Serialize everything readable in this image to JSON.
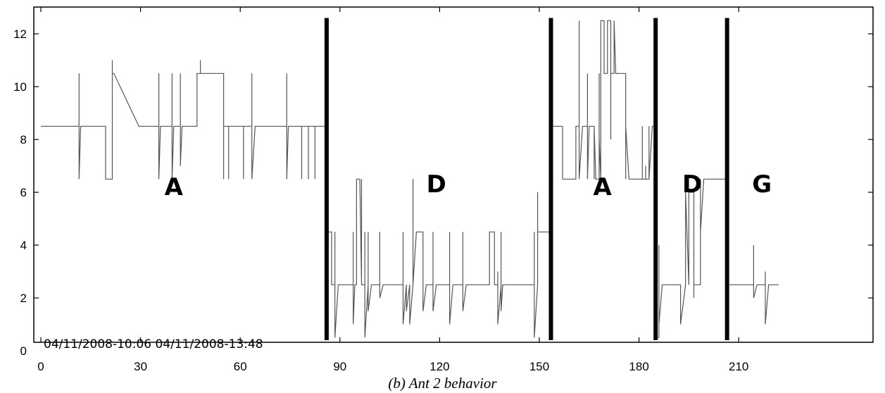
{
  "caption": "(b) Ant 2 behavior",
  "chart_data": {
    "type": "line",
    "title": "",
    "xlabel": "",
    "ylabel": "",
    "xlim": [
      0,
      240
    ],
    "ylim": [
      0,
      13
    ],
    "x_ticks": [
      0,
      30,
      60,
      90,
      120,
      150,
      180,
      210
    ],
    "y_ticks": [
      0,
      2,
      4,
      6,
      8,
      10,
      12
    ],
    "grid": false,
    "line_color": "#555555",
    "separator_color": "#000000",
    "separators": [
      86,
      153.5,
      185,
      206.5
    ],
    "segment_labels": [
      {
        "text": "A",
        "x": 40,
        "y": 5.9
      },
      {
        "text": "D",
        "x": 119,
        "y": 6.0
      },
      {
        "text": "A",
        "x": 169,
        "y": 5.9
      },
      {
        "text": "D",
        "x": 196,
        "y": 6.0
      },
      {
        "text": "G",
        "x": 217,
        "y": 6.0
      }
    ],
    "annotation": "04/11/2008-10:06 04/11/2008-13:48",
    "series": [
      {
        "x": [
          0,
          11.5,
          11.5,
          11.5,
          12,
          19.5,
          19.5,
          20,
          21.5,
          21.5,
          21.5,
          22,
          29.5,
          35.5,
          35.5,
          35.5,
          36,
          39.5,
          39.5,
          39.5,
          40,
          42,
          42,
          42,
          42.5,
          47,
          47,
          48,
          48,
          48,
          49.5,
          49.5,
          50,
          51,
          55,
          55,
          55,
          56.5,
          56.5,
          56.5,
          58,
          61,
          61,
          61,
          62,
          63.5,
          63.5,
          63.5,
          64.5,
          74,
          74,
          74,
          74.5,
          75,
          78.5,
          78.5,
          78.5,
          79,
          80.5,
          80.5,
          80.5,
          81,
          82.5,
          82.5,
          82.5,
          83,
          86
        ],
        "y": [
          8.5,
          8.5,
          10.5,
          6.5,
          8.5,
          8.5,
          6.5,
          6.5,
          6.5,
          11,
          10.5,
          10.5,
          8.5,
          8.5,
          10.5,
          6.5,
          8.5,
          8.5,
          10.5,
          6.5,
          8.5,
          8.5,
          10.5,
          7,
          8.5,
          8.5,
          10.5,
          10.5,
          11,
          10.5,
          10.5,
          10.5,
          10.5,
          10.5,
          10.5,
          6.5,
          8.5,
          8.5,
          6.5,
          8.5,
          8.5,
          8.5,
          6.5,
          8.5,
          8.5,
          8.5,
          10.5,
          6.5,
          8.5,
          8.5,
          10.5,
          6.5,
          8.5,
          8.5,
          8.5,
          6.5,
          8.5,
          8.5,
          8.5,
          6.5,
          8.5,
          8.5,
          8.5,
          6.5,
          8.5,
          8.5,
          8.5
        ]
      },
      {
        "x": [
          86,
          86.5,
          87.5,
          87.5,
          88.5,
          88.5,
          88.5,
          89.5,
          94,
          94,
          94,
          94.5,
          95,
          95,
          96,
          96.5,
          96.5,
          96.5,
          97.5,
          97.5,
          97.5,
          98.5,
          98.5,
          98.5,
          99.5,
          102,
          102,
          102,
          103,
          109,
          109,
          109,
          110,
          110,
          110,
          111,
          111,
          111,
          112,
          112,
          112,
          113,
          113,
          115,
          115,
          115,
          116,
          118,
          118,
          118,
          119,
          123,
          123,
          123,
          124,
          127,
          127,
          127,
          128,
          135,
          135,
          136.5,
          136.5,
          137.5,
          137.5,
          137.5,
          138.5,
          138.5,
          138.5,
          139,
          148.5,
          148.5,
          148.5,
          149.5,
          149.5,
          149.5,
          150,
          153.5
        ],
        "y": [
          0.5,
          4.5,
          4.5,
          2.5,
          2.5,
          4.5,
          0.5,
          2.5,
          2.5,
          4.5,
          1,
          2.5,
          2.5,
          6.5,
          6.5,
          2.5,
          6.5,
          2.5,
          2.5,
          4.5,
          0.5,
          2.5,
          4.5,
          1.5,
          2.5,
          2.5,
          4.5,
          2,
          2.5,
          2.5,
          4.5,
          1,
          2.5,
          2,
          1.5,
          2.5,
          2,
          1,
          2.5,
          6.5,
          2.5,
          4.5,
          4.5,
          4.5,
          2.5,
          1.5,
          2.5,
          2.5,
          4.5,
          1.5,
          2.5,
          2.5,
          4.5,
          1,
          2.5,
          2.5,
          4.5,
          1.5,
          2.5,
          2.5,
          4.5,
          4.5,
          2.5,
          2.5,
          3,
          1,
          2.5,
          4.5,
          1.5,
          2.5,
          2.5,
          4.5,
          0.5,
          2.5,
          6,
          4.5,
          4.5,
          4.5
        ]
      },
      {
        "x": [
          154,
          157,
          157,
          161,
          161,
          162,
          162,
          162,
          163,
          164.5,
          164.5,
          164.5,
          165,
          166.5,
          166.5,
          166.5,
          167,
          168,
          168,
          168,
          168.5,
          168.5,
          169.5,
          169.5,
          170.5,
          170.5,
          171.5,
          171.5,
          171.5,
          172.5,
          172.5,
          173,
          176,
          176,
          176,
          177,
          181,
          181,
          181,
          182,
          182,
          182,
          183,
          183,
          183,
          184,
          185
        ],
        "y": [
          8.5,
          8.5,
          6.5,
          6.5,
          8.5,
          8.5,
          12.5,
          6.5,
          8.5,
          8.5,
          10.5,
          6.5,
          8.5,
          8.5,
          6.5,
          8.5,
          6.5,
          6.5,
          10.5,
          8,
          6.5,
          12.5,
          12.5,
          10.5,
          10.5,
          12.5,
          12.5,
          8,
          10.5,
          10.5,
          12.5,
          10.5,
          10.5,
          6.5,
          8.5,
          6.5,
          6.5,
          8.5,
          6.5,
          6.5,
          7,
          6.5,
          6.5,
          8.5,
          6.5,
          8.5,
          8.5
        ]
      },
      {
        "x": [
          185,
          186,
          186,
          186,
          187,
          192.5,
          192.5,
          192.5,
          194,
          194,
          194,
          195,
          195,
          195,
          196.5,
          196.5,
          196.5,
          197,
          198.5,
          198.5,
          198.5,
          199.5,
          199.5,
          206.5
        ],
        "y": [
          0.5,
          0.5,
          4,
          1,
          2.5,
          2.5,
          2,
          1,
          2.5,
          2.5,
          6,
          2.5,
          4.5,
          6,
          6,
          2,
          2.5,
          2.5,
          2.5,
          6.5,
          4.5,
          6.5,
          6.5,
          6.5
        ]
      },
      {
        "x": [
          207,
          214.5,
          214.5,
          214.5,
          215.5,
          218,
          218,
          218,
          219,
          222
        ],
        "y": [
          2.5,
          2.5,
          4,
          2,
          2.5,
          2.5,
          3,
          1,
          2.5,
          2.5
        ]
      }
    ]
  }
}
